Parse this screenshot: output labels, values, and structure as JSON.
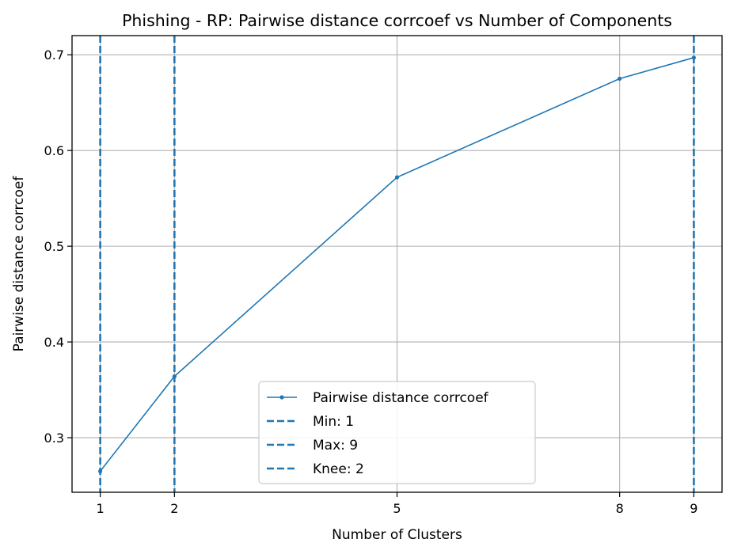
{
  "chart_data": {
    "type": "line",
    "title": "Phishing - RP: Pairwise distance corrcoef vs Number of Components",
    "xlabel": "Number of Clusters",
    "ylabel": "Pairwise distance corrcoef",
    "xlim": [
      0.62,
      9.38
    ],
    "ylim": [
      0.243,
      0.72
    ],
    "xticks": [
      1,
      2,
      5,
      8,
      9
    ],
    "yticks": [
      0.3,
      0.4,
      0.5,
      0.6,
      0.7
    ],
    "xtick_labels": [
      "1",
      "2",
      "5",
      "8",
      "9"
    ],
    "ytick_labels": [
      "0.3",
      "0.4",
      "0.5",
      "0.6",
      "0.7"
    ],
    "grid": true,
    "legend_position": "lower center",
    "series": [
      {
        "name": "Pairwise distance corrcoef",
        "x": [
          1,
          2,
          5,
          8,
          9
        ],
        "y": [
          0.265,
          0.364,
          0.572,
          0.675,
          0.697
        ]
      }
    ],
    "vlines": [
      {
        "name": "Min: 1",
        "x": 1
      },
      {
        "name": "Max: 9",
        "x": 9
      },
      {
        "name": "Knee: 2",
        "x": 2
      }
    ],
    "colors": {
      "series": "#1f77b4",
      "grid": "#b0b0b0"
    }
  }
}
